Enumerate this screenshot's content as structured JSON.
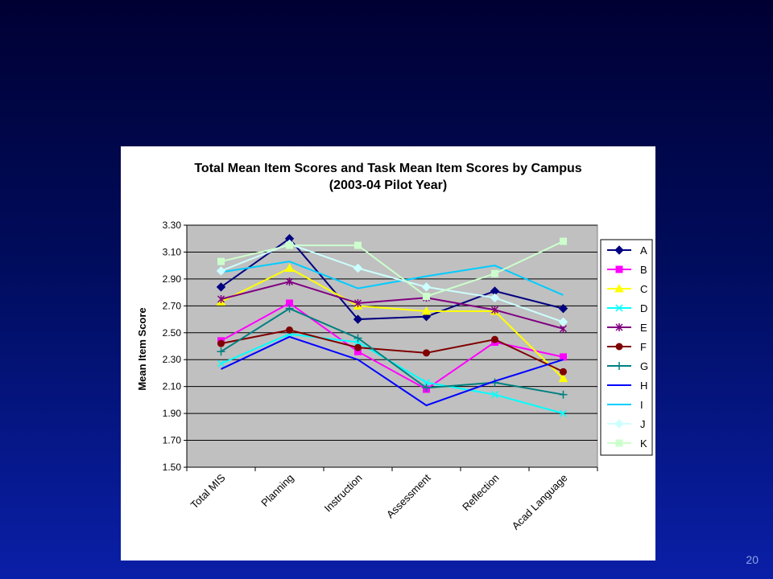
{
  "slide": {
    "number": "20"
  },
  "chart_data": {
    "type": "line",
    "title": "Total Mean Item Scores and Task Mean Item Scores by Campus",
    "subtitle": "(2003-04 Pilot Year)",
    "xlabel": "",
    "ylabel": "Mean Item Score",
    "ylim": [
      1.5,
      3.3
    ],
    "yticks": [
      "1.50",
      "1.70",
      "1.90",
      "2.10",
      "2.30",
      "2.50",
      "2.70",
      "2.90",
      "3.10",
      "3.30"
    ],
    "grid": "horizontal",
    "legend_position": "right",
    "categories": [
      "Total MIS",
      "Planning",
      "Instruction",
      "Assessment",
      "Reflection",
      "Acad Language"
    ],
    "series": [
      {
        "name": "A",
        "color": "#000080",
        "marker": "diamond",
        "values": [
          2.84,
          3.2,
          2.6,
          2.62,
          2.81,
          2.68
        ]
      },
      {
        "name": "B",
        "color": "#ff00ff",
        "marker": "square",
        "values": [
          2.44,
          2.72,
          2.36,
          2.08,
          2.43,
          2.32
        ]
      },
      {
        "name": "C",
        "color": "#ffff00",
        "marker": "triangle",
        "values": [
          2.73,
          2.98,
          2.7,
          2.66,
          2.66,
          2.16
        ]
      },
      {
        "name": "D",
        "color": "#00ffff",
        "marker": "x",
        "values": [
          2.27,
          2.49,
          2.43,
          2.13,
          2.04,
          1.9
        ]
      },
      {
        "name": "E",
        "color": "#800080",
        "marker": "star",
        "values": [
          2.75,
          2.88,
          2.72,
          2.76,
          2.67,
          2.53
        ]
      },
      {
        "name": "F",
        "color": "#800000",
        "marker": "circle",
        "values": [
          2.42,
          2.52,
          2.39,
          2.35,
          2.45,
          2.21
        ]
      },
      {
        "name": "G",
        "color": "#008080",
        "marker": "plus",
        "values": [
          2.36,
          2.68,
          2.46,
          2.09,
          2.13,
          2.04
        ]
      },
      {
        "name": "H",
        "color": "#0000ff",
        "marker": "none",
        "values": [
          2.23,
          2.47,
          2.3,
          1.96,
          2.14,
          2.3
        ]
      },
      {
        "name": "I",
        "color": "#00ccff",
        "marker": "none",
        "values": [
          2.95,
          3.03,
          2.83,
          2.92,
          3.0,
          2.78
        ]
      },
      {
        "name": "J",
        "color": "#ccffff",
        "marker": "diamond",
        "values": [
          2.96,
          3.16,
          2.98,
          2.84,
          2.76,
          2.58
        ]
      },
      {
        "name": "K",
        "color": "#ccffcc",
        "marker": "square",
        "values": [
          3.03,
          3.15,
          3.15,
          2.77,
          2.94,
          3.18
        ]
      }
    ]
  }
}
